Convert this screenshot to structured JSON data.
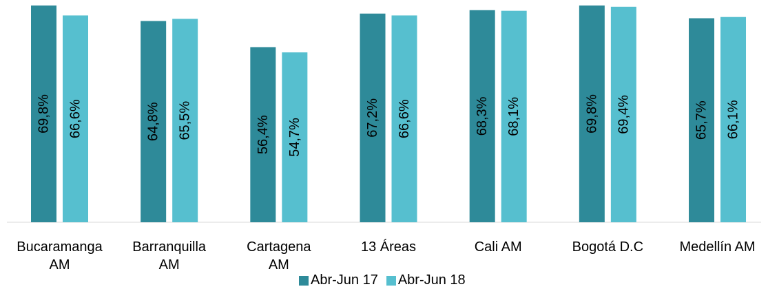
{
  "chart_data": {
    "type": "bar",
    "categories": [
      "Bucaramanga AM",
      "Barranquilla AM",
      "Cartagena AM",
      "13 Áreas",
      "Cali AM",
      "Bogotá D.C",
      "Medellín AM"
    ],
    "category_lines": [
      [
        "Bucaramanga",
        "AM"
      ],
      [
        "Barranquilla",
        "AM"
      ],
      [
        "Cartagena",
        "AM"
      ],
      [
        "13 Áreas"
      ],
      [
        "Cali AM"
      ],
      [
        "Bogotá D.C"
      ],
      [
        "Medellín AM"
      ]
    ],
    "series": [
      {
        "name": "Abr-Jun 17",
        "color": "#2E8A99",
        "values": [
          69.8,
          64.8,
          56.4,
          67.2,
          68.3,
          69.8,
          65.7
        ],
        "labels": [
          "69,8%",
          "64,8%",
          "56,4%",
          "67,2%",
          "68,3%",
          "69,8%",
          "65,7%"
        ]
      },
      {
        "name": "Abr-Jun 18",
        "color": "#56BFCF",
        "values": [
          66.6,
          65.5,
          54.7,
          66.6,
          68.1,
          69.4,
          66.1
        ],
        "labels": [
          "66,6%",
          "65,5%",
          "54,7%",
          "66,6%",
          "68,1%",
          "69,4%",
          "66,1%"
        ]
      }
    ],
    "legend_position": "bottom",
    "grid": false
  }
}
